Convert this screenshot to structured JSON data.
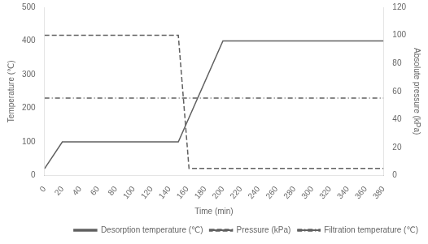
{
  "chart_data": {
    "type": "line",
    "xlabel": "Time (min)",
    "ylabel": "Temperature (℃)",
    "y2label": "Absolute pressure (kPa)",
    "xlim": [
      0,
      380
    ],
    "ylim": [
      0,
      500
    ],
    "y2lim": [
      0,
      120
    ],
    "xticks": [
      0,
      20,
      40,
      60,
      80,
      100,
      120,
      140,
      160,
      180,
      200,
      220,
      240,
      260,
      280,
      300,
      320,
      340,
      360,
      380
    ],
    "yticks": [
      0,
      100,
      200,
      300,
      400,
      500
    ],
    "y2ticks": [
      0,
      20,
      40,
      60,
      80,
      100,
      120
    ],
    "grid": false,
    "legend": "lower right",
    "color": "#606060",
    "series": [
      {
        "name": "Desorption temperature (℃)",
        "x": [
          0,
          20,
          150,
          150,
          200,
          380
        ],
        "values": [
          20,
          100,
          100,
          100,
          400,
          400
        ],
        "line_style": "solid"
      },
      {
        "name": "Pressure (kPa)",
        "axis": "y2",
        "x": [
          0,
          150,
          150,
          162,
          162,
          380
        ],
        "values": [
          100,
          100,
          100,
          5,
          5,
          5
        ],
        "line_style": "dashed"
      },
      {
        "name": "Filtration temperature (℃)",
        "x": [
          0,
          380
        ],
        "values": [
          230,
          230
        ],
        "line_style": "dashdot"
      }
    ]
  }
}
